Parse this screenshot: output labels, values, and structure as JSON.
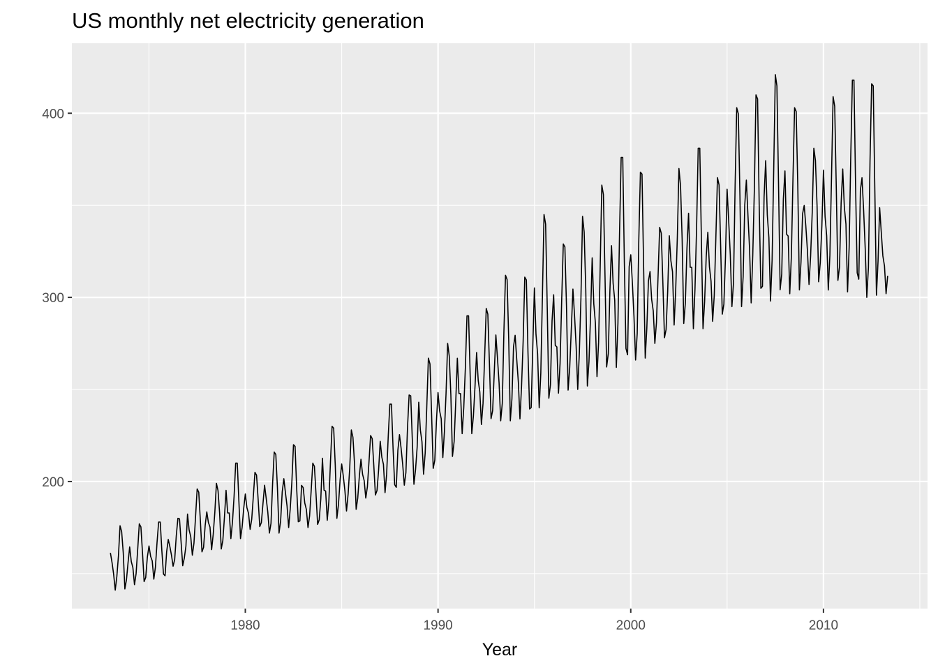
{
  "chart_data": {
    "type": "line",
    "title": "US monthly net electricity generation",
    "xlabel": "Year",
    "ylabel": "",
    "xlim": [
      1971.0,
      2015.4
    ],
    "ylim": [
      131,
      438
    ],
    "x_ticks": [
      1980,
      1990,
      2000,
      2010
    ],
    "x_tick_labels": [
      "1980",
      "1990",
      "2000",
      "2010"
    ],
    "x_minor_ticks": [
      1975,
      1985,
      1995,
      2005,
      2015
    ],
    "y_ticks": [
      200,
      300,
      400
    ],
    "y_tick_labels": [
      "200",
      "300",
      "400"
    ],
    "y_minor_ticks": [
      150,
      250,
      350
    ],
    "grid": true,
    "background_color": "#ebebeb",
    "grid_color": "#ffffff",
    "line_color": "#000000",
    "series": [
      {
        "start_year": 1973,
        "start_month": 1,
        "frequency": 12,
        "annual_min": [
          141,
          144,
          147,
          154,
          160,
          163,
          169,
          174,
          172,
          175,
          175,
          179,
          184,
          191,
          194,
          198,
          204,
          213,
          226,
          231,
          233,
          234,
          240,
          248,
          250,
          257,
          262,
          266,
          275,
          285,
          283,
          287,
          295,
          297,
          298,
          302,
          307,
          304,
          303,
          300,
          302
        ],
        "annual_max": [
          176,
          177,
          178,
          180,
          196,
          199,
          210,
          205,
          216,
          220,
          210,
          230,
          228,
          225,
          242,
          247,
          267,
          275,
          290,
          294,
          312,
          311,
          345,
          329,
          344,
          361,
          376,
          368,
          338,
          370,
          381,
          365,
          403,
          410,
          421,
          403,
          381,
          409,
          418,
          416,
          356
        ]
      }
    ]
  }
}
